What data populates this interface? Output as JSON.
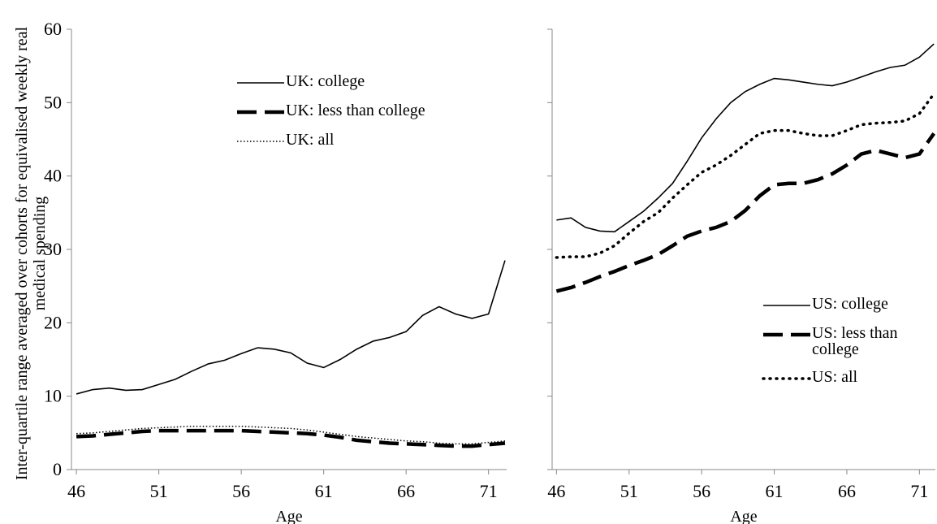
{
  "chart_data": [
    {
      "type": "line",
      "y_label": "Inter-quartile range averaged over cohorts for equivalised weekly real medical spending",
      "x_label": "Age",
      "x": [
        46,
        47,
        48,
        49,
        50,
        51,
        52,
        53,
        54,
        55,
        56,
        57,
        58,
        59,
        60,
        61,
        62,
        63,
        64,
        65,
        66,
        67,
        68,
        69,
        70,
        71,
        72
      ],
      "xlim": [
        45.7,
        72.1
      ],
      "xticks": [
        46,
        51,
        56,
        61,
        66,
        71
      ],
      "ylim": [
        0,
        60
      ],
      "yticks": [
        0,
        10,
        20,
        30,
        40,
        50,
        60
      ],
      "series": [
        {
          "name": "UK: college",
          "color": "#000000",
          "style": "solid",
          "values": [
            10.3,
            10.9,
            11.1,
            10.8,
            10.9,
            11.6,
            12.3,
            13.4,
            14.4,
            14.9,
            15.8,
            16.6,
            16.4,
            15.9,
            14.5,
            13.9,
            15.0,
            16.4,
            17.5,
            18.0,
            18.8,
            21.0,
            22.2,
            21.2,
            20.6,
            21.2,
            28.5
          ]
        },
        {
          "name": "UK: less than college",
          "color": "#000000",
          "style": "dashed",
          "values": [
            4.5,
            4.6,
            4.8,
            5.0,
            5.2,
            5.3,
            5.3,
            5.3,
            5.3,
            5.3,
            5.3,
            5.2,
            5.1,
            5.0,
            4.9,
            4.7,
            4.4,
            4.0,
            3.8,
            3.6,
            3.5,
            3.4,
            3.3,
            3.2,
            3.2,
            3.4,
            3.6
          ]
        },
        {
          "name": "UK: all",
          "color": "#000000",
          "style": "dotted-fine",
          "values": [
            4.9,
            5.0,
            5.2,
            5.4,
            5.6,
            5.7,
            5.8,
            5.9,
            5.9,
            5.9,
            5.9,
            5.8,
            5.7,
            5.6,
            5.4,
            5.1,
            4.8,
            4.5,
            4.3,
            4.1,
            3.9,
            3.8,
            3.6,
            3.5,
            3.5,
            3.7,
            3.9
          ]
        }
      ]
    },
    {
      "type": "line",
      "x_label": "Age",
      "x": [
        46,
        47,
        48,
        49,
        50,
        51,
        52,
        53,
        54,
        55,
        56,
        57,
        58,
        59,
        60,
        61,
        62,
        63,
        64,
        65,
        66,
        67,
        68,
        69,
        70,
        71,
        72
      ],
      "xlim": [
        45.7,
        72.1
      ],
      "xticks": [
        46,
        51,
        56,
        61,
        66,
        71
      ],
      "ylim": [
        0,
        60
      ],
      "yticks": [
        0,
        10,
        20,
        30,
        40,
        50,
        60
      ],
      "series": [
        {
          "name": "US: college",
          "color": "#000000",
          "style": "solid",
          "values": [
            34.0,
            34.3,
            33.0,
            32.5,
            32.4,
            33.8,
            35.2,
            37.0,
            39.0,
            42.0,
            45.2,
            47.8,
            50.0,
            51.5,
            52.5,
            53.3,
            53.1,
            52.8,
            52.5,
            52.3,
            52.8,
            53.5,
            54.2,
            54.8,
            55.1,
            56.2,
            58.0
          ]
        },
        {
          "name": "US: less than college",
          "color": "#000000",
          "style": "dashed",
          "values": [
            24.3,
            24.8,
            25.5,
            26.3,
            27.0,
            27.8,
            28.5,
            29.3,
            30.5,
            31.8,
            32.5,
            33.0,
            33.8,
            35.3,
            37.3,
            38.8,
            39.0,
            39.0,
            39.5,
            40.3,
            41.5,
            43.0,
            43.5,
            43.0,
            42.5,
            43.0,
            45.8
          ]
        },
        {
          "name": "US: all",
          "color": "#000000",
          "style": "dotted",
          "values": [
            28.9,
            29.0,
            29.0,
            29.5,
            30.5,
            32.2,
            33.8,
            35.0,
            37.0,
            38.8,
            40.5,
            41.5,
            42.8,
            44.3,
            45.8,
            46.2,
            46.2,
            45.8,
            45.5,
            45.5,
            46.2,
            47.0,
            47.2,
            47.3,
            47.5,
            48.5,
            51.2
          ]
        }
      ]
    }
  ]
}
